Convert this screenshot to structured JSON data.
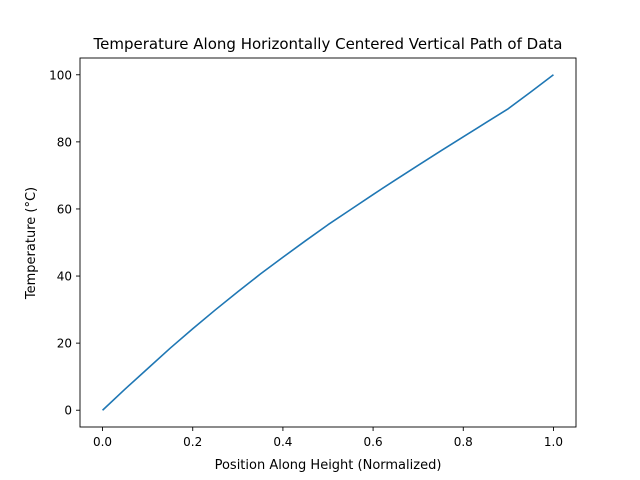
{
  "chart_data": {
    "type": "line",
    "title": "Temperature Along Horizontally Centered Vertical Path of Data",
    "xlabel": "Position Along Height (Normalized)",
    "ylabel": "Temperature (°C)",
    "xlim": [
      -0.05,
      1.05
    ],
    "ylim": [
      -5,
      105
    ],
    "xticks": [
      0.0,
      0.2,
      0.4,
      0.6,
      0.8,
      1.0
    ],
    "xtick_labels": [
      "0.0",
      "0.2",
      "0.4",
      "0.6",
      "0.8",
      "1.0"
    ],
    "yticks": [
      0,
      20,
      40,
      60,
      80,
      100
    ],
    "ytick_labels": [
      "0",
      "20",
      "40",
      "60",
      "80",
      "100"
    ],
    "grid": false,
    "series": [
      {
        "color": "#1f77b4",
        "x": [
          0.0,
          0.05,
          0.1,
          0.15,
          0.2,
          0.25,
          0.3,
          0.35,
          0.4,
          0.45,
          0.5,
          0.55,
          0.6,
          0.65,
          0.7,
          0.75,
          0.8,
          0.85,
          0.9,
          0.95,
          1.0
        ],
        "y": [
          0.0,
          6.3,
          12.4,
          18.5,
          24.3,
          29.9,
          35.3,
          40.6,
          45.6,
          50.5,
          55.3,
          59.8,
          64.3,
          68.7,
          73.0,
          77.3,
          81.5,
          85.7,
          89.9,
          94.9,
          100.0
        ]
      }
    ]
  }
}
